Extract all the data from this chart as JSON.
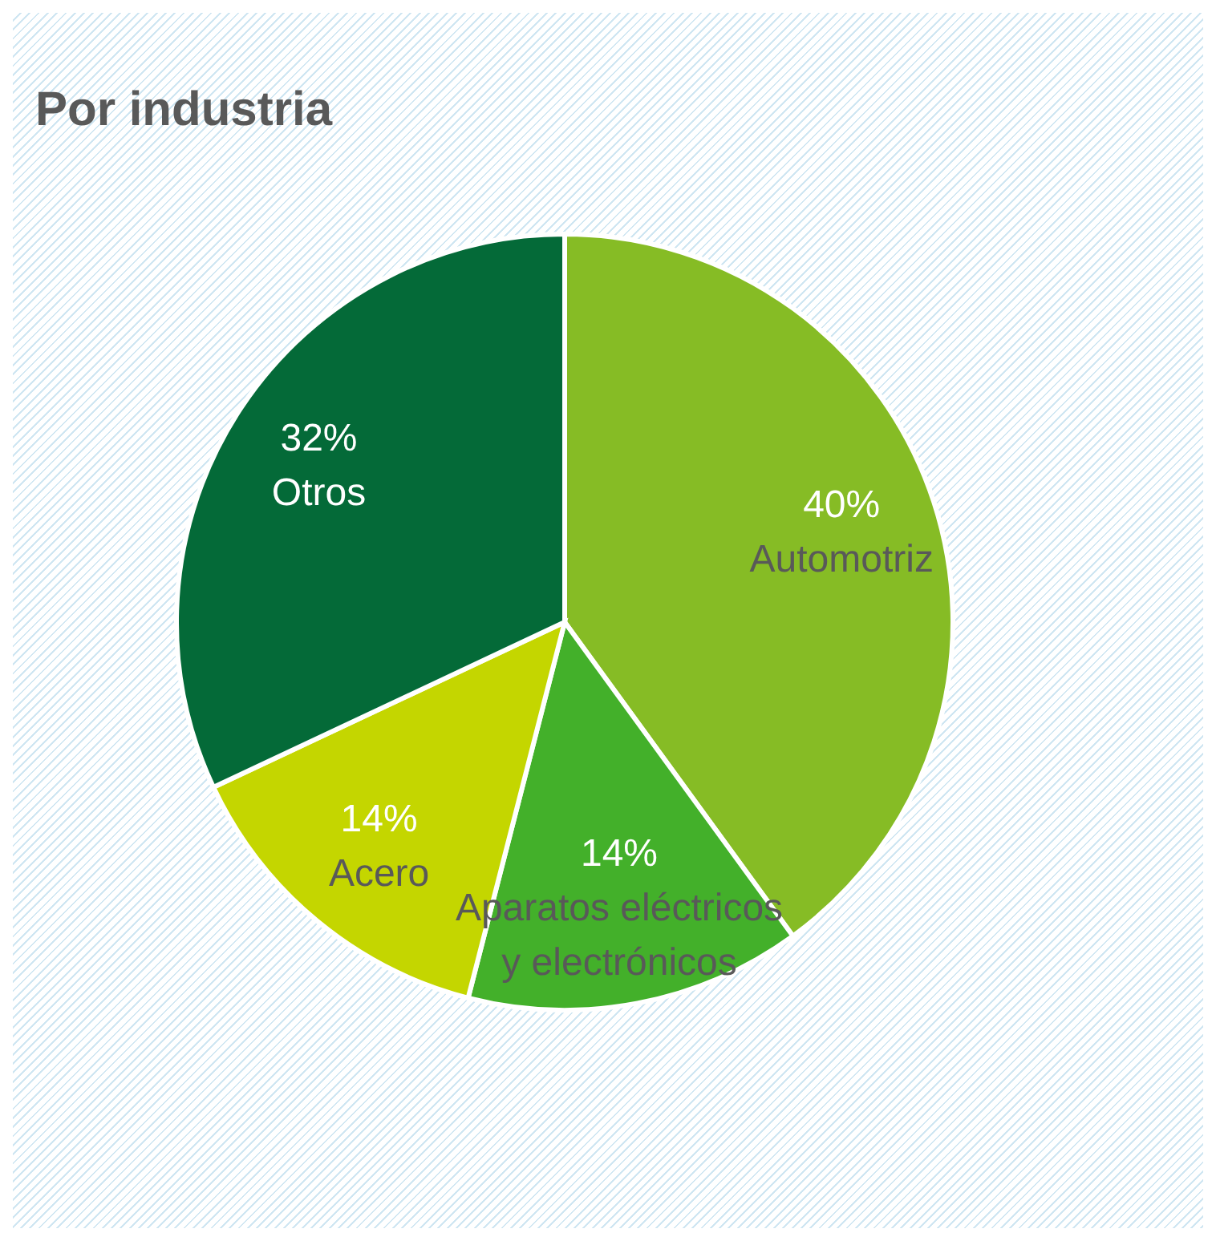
{
  "chart_data": {
    "type": "pie",
    "title": "Por industria",
    "categories": [
      "Automotriz",
      "Aparatos eléctricos y electrónicos",
      "Acero",
      "Otros"
    ],
    "values": [
      40,
      14,
      14,
      32
    ],
    "value_labels": [
      "40%",
      "14%",
      "14%",
      "32%"
    ],
    "colors": [
      "#86bc25",
      "#43b02a",
      "#c4d600",
      "#046a38"
    ],
    "legend": false
  }
}
